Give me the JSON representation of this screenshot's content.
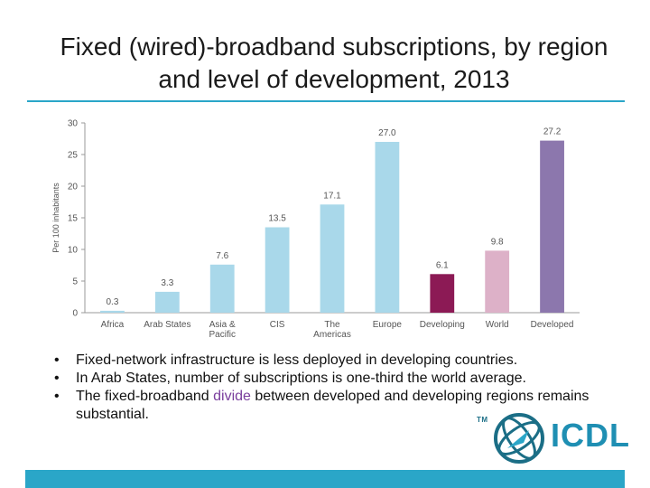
{
  "slide": {
    "title": "Fixed (wired)-broadband subscriptions, by region and level of development, 2013",
    "bullets": [
      {
        "before": "Fixed-network infrastructure is less deployed in developing countries.",
        "highlight": "",
        "after": ""
      },
      {
        "before": "In Arab States, number of subscriptions is one-third the world average.",
        "highlight": "",
        "after": ""
      },
      {
        "before": "The fixed-broadband ",
        "highlight": "divide",
        "after": " between developed and developing regions remains substantial."
      }
    ],
    "logo": {
      "tm": "TM",
      "text": "ICDL"
    },
    "colors": {
      "accent": "#2aa6c8",
      "highlight": "#7a3e9d",
      "logo": "#1f8fb3"
    }
  },
  "chart_data": {
    "type": "bar",
    "title": "",
    "xlabel": "",
    "ylabel": "Per 100 inhabitants",
    "ylim": [
      0,
      30
    ],
    "yticks": [
      0,
      5,
      10,
      15,
      20,
      25,
      30
    ],
    "grid": false,
    "categories": [
      "Africa",
      "Arab States",
      "Asia & Pacific",
      "CIS",
      "The Americas",
      "Europe",
      "Developing",
      "World",
      "Developed"
    ],
    "category_lines": [
      [
        "Africa"
      ],
      [
        "Arab States"
      ],
      [
        "Asia &",
        "Pacific"
      ],
      [
        "CIS"
      ],
      [
        "The",
        "Americas"
      ],
      [
        "Europe"
      ],
      [
        "Developing"
      ],
      [
        "World"
      ],
      [
        "Developed"
      ]
    ],
    "values": [
      0.3,
      3.3,
      7.6,
      13.5,
      17.1,
      27.0,
      6.1,
      9.8,
      27.2
    ],
    "value_labels": [
      "0.3",
      "3.3",
      "7.6",
      "13.5",
      "17.1",
      "27.0",
      "6.1",
      "9.8",
      "27.2"
    ],
    "colors": [
      "#a9d8ea",
      "#a9d8ea",
      "#a9d8ea",
      "#a9d8ea",
      "#a9d8ea",
      "#a9d8ea",
      "#8c1a55",
      "#ddb1c8",
      "#8c77ad"
    ]
  }
}
